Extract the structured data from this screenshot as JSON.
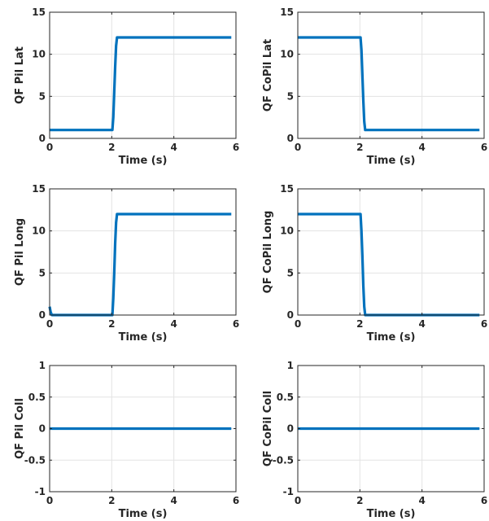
{
  "chart_data": [
    {
      "type": "line",
      "title": "",
      "xlabel": "Time (s)",
      "ylabel": "QF Pil Lat",
      "xlim": [
        0,
        6
      ],
      "ylim": [
        0,
        15
      ],
      "xticks": [
        "0",
        "2",
        "4",
        "6"
      ],
      "yticks": [
        "0",
        "5",
        "10",
        "15"
      ],
      "grid": true,
      "series": [
        {
          "color": "#0072BD",
          "x": [
            0,
            2.02,
            2.05,
            2.08,
            2.11,
            2.14,
            2.17,
            5.85
          ],
          "y": [
            1,
            1,
            2.5,
            5.5,
            8.5,
            11,
            12,
            12
          ]
        }
      ]
    },
    {
      "type": "line",
      "title": "",
      "xlabel": "Time (s)",
      "ylabel": "QF CoPil Lat",
      "xlim": [
        0,
        6
      ],
      "ylim": [
        0,
        15
      ],
      "xticks": [
        "0",
        "2",
        "4",
        "6"
      ],
      "yticks": [
        "0",
        "5",
        "10",
        "15"
      ],
      "grid": true,
      "series": [
        {
          "color": "#0072BD",
          "x": [
            0,
            2.02,
            2.05,
            2.08,
            2.11,
            2.14,
            2.17,
            5.85
          ],
          "y": [
            12,
            12,
            10.5,
            7.5,
            4.5,
            2,
            1,
            1
          ]
        }
      ]
    },
    {
      "type": "line",
      "title": "",
      "xlabel": "Time (s)",
      "ylabel": "QF Pil Long",
      "xlim": [
        0,
        6
      ],
      "ylim": [
        0,
        15
      ],
      "xticks": [
        "0",
        "2",
        "4",
        "6"
      ],
      "yticks": [
        "0",
        "5",
        "10",
        "15"
      ],
      "grid": true,
      "series": [
        {
          "color": "#0072BD",
          "x": [
            0,
            0.03,
            0.07,
            2.02,
            2.05,
            2.08,
            2.11,
            2.14,
            2.17,
            5.85
          ],
          "y": [
            1,
            0.4,
            0,
            0,
            2,
            5,
            8.5,
            11,
            12,
            12
          ]
        }
      ]
    },
    {
      "type": "line",
      "title": "",
      "xlabel": "Time (s)",
      "ylabel": "QF CoPil Long",
      "xlim": [
        0,
        6
      ],
      "ylim": [
        0,
        15
      ],
      "xticks": [
        "0",
        "2",
        "4",
        "6"
      ],
      "yticks": [
        "0",
        "5",
        "10",
        "15"
      ],
      "grid": true,
      "series": [
        {
          "color": "#0072BD",
          "x": [
            0,
            2.02,
            2.05,
            2.08,
            2.11,
            2.14,
            2.17,
            5.85
          ],
          "y": [
            12,
            12,
            10,
            7,
            3.5,
            1,
            0,
            0
          ]
        }
      ]
    },
    {
      "type": "line",
      "title": "",
      "xlabel": "Time (s)",
      "ylabel": "QF Pil Coll",
      "xlim": [
        0,
        6
      ],
      "ylim": [
        -1,
        1
      ],
      "xticks": [
        "0",
        "2",
        "4",
        "6"
      ],
      "yticks": [
        "-1",
        "-0.5",
        "0",
        "0.5",
        "1"
      ],
      "grid": true,
      "series": [
        {
          "color": "#0072BD",
          "x": [
            0,
            5.85
          ],
          "y": [
            0,
            0
          ]
        }
      ]
    },
    {
      "type": "line",
      "title": "",
      "xlabel": "Time (s)",
      "ylabel": "QF CoPil Coll",
      "xlim": [
        0,
        6
      ],
      "ylim": [
        -1,
        1
      ],
      "xticks": [
        "0",
        "2",
        "4",
        "6"
      ],
      "yticks": [
        "-1",
        "-0.5",
        "0",
        "0.5",
        "1"
      ],
      "grid": true,
      "series": [
        {
          "color": "#0072BD",
          "x": [
            0,
            5.85
          ],
          "y": [
            0,
            0
          ]
        }
      ]
    }
  ]
}
